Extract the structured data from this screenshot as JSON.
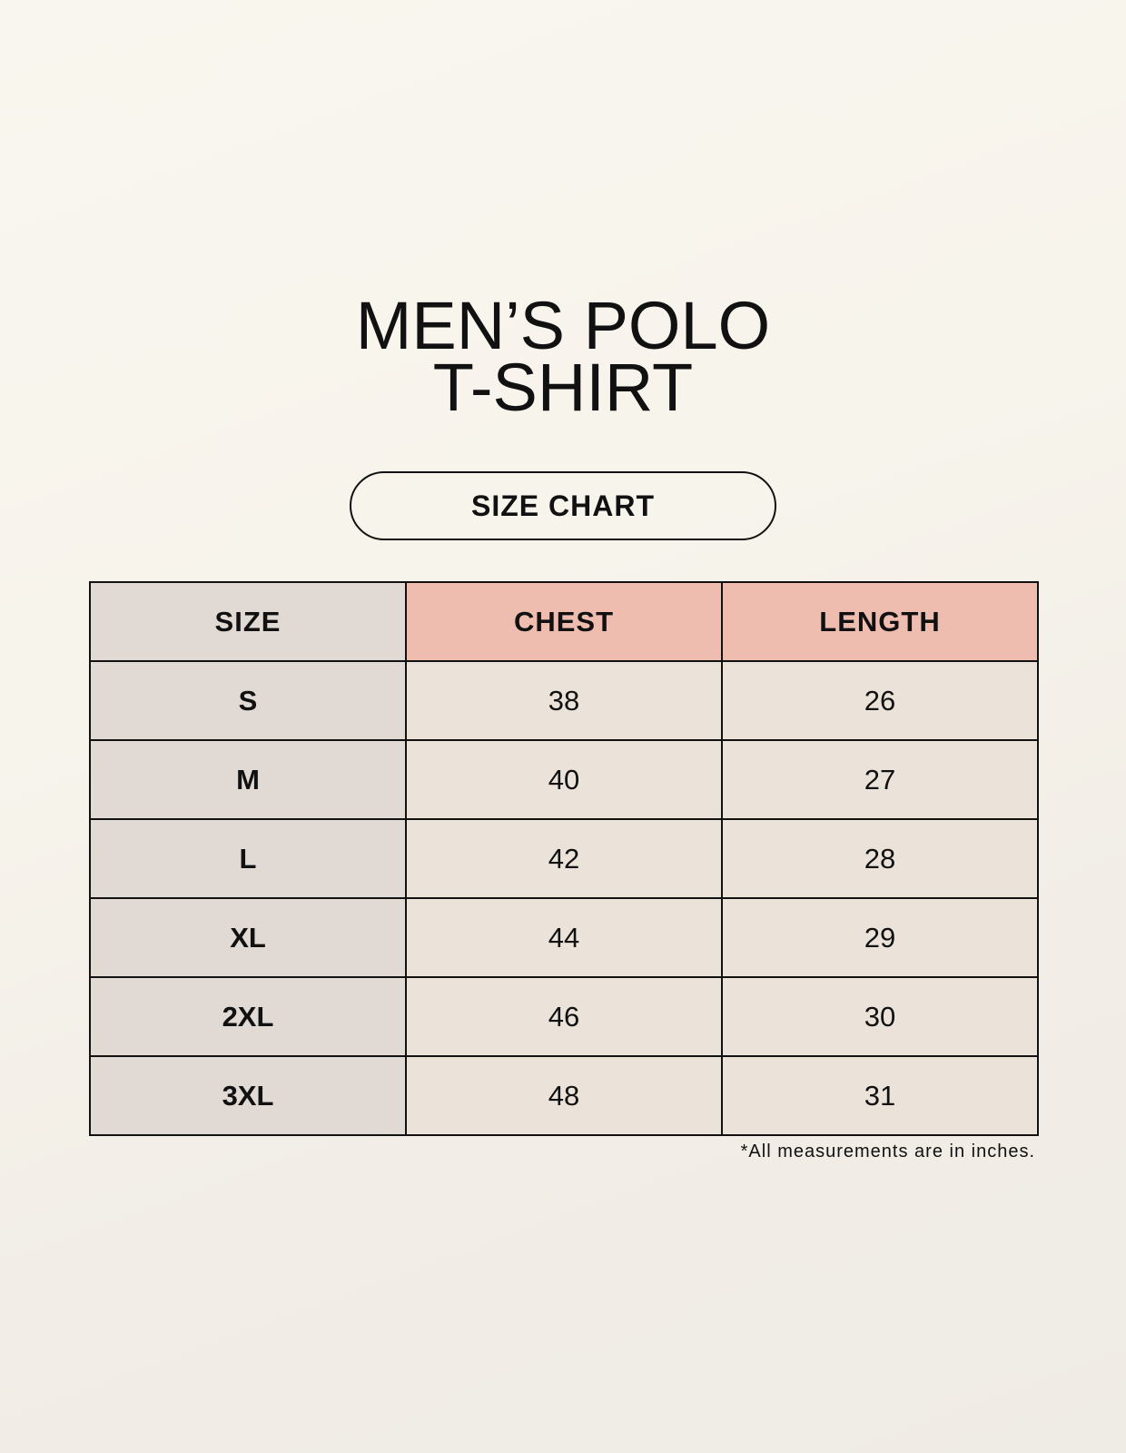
{
  "title": {
    "line1": "MEN’S POLO",
    "line2": "T-SHIRT"
  },
  "badge": "SIZE CHART",
  "table": {
    "headers": [
      "SIZE",
      "CHEST",
      "LENGTH"
    ],
    "rows": [
      [
        "S",
        "38",
        "26"
      ],
      [
        "M",
        "40",
        "27"
      ],
      [
        "L",
        "42",
        "28"
      ],
      [
        "XL",
        "44",
        "29"
      ],
      [
        "2XL",
        "46",
        "30"
      ],
      [
        "3XL",
        "48",
        "31"
      ]
    ]
  },
  "footnote": "*All measurements are in inches.",
  "colors": {
    "size_column": "#e1d9d4",
    "header_accent": "#efbdb0",
    "cell": "#ebe3d9"
  }
}
